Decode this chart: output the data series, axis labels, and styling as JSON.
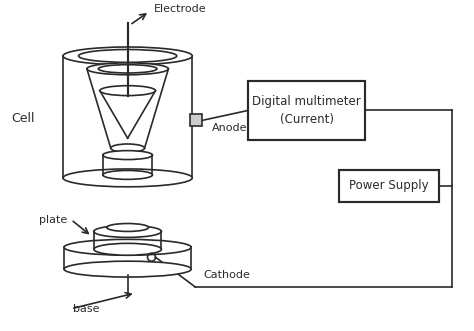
{
  "bg_color": "#ffffff",
  "line_color": "#2a2a2a",
  "text_color": "#2a2a2a",
  "lw": 1.2,
  "labels": {
    "electrode": "Electrode",
    "cell": "Cell",
    "anode": "Anode",
    "plate": "plate",
    "base": "base",
    "cathode": "Cathode",
    "multimeter": "Digital multimeter\n(Current)",
    "power_supply": "Power Supply"
  },
  "figsize": [
    4.74,
    3.31
  ],
  "dpi": 100
}
